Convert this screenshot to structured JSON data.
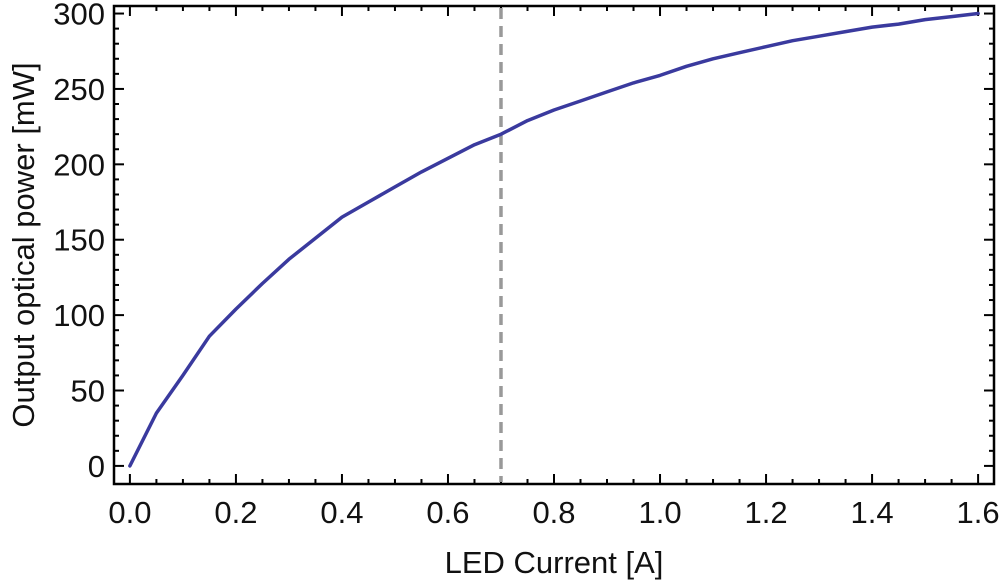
{
  "chart_data": {
    "type": "line",
    "title": "",
    "xlabel": "LED Current [A]",
    "ylabel": "Output optical power [mW]",
    "xlim": [
      -0.03,
      1.63
    ],
    "ylim": [
      -12,
      305
    ],
    "xticks": [
      0.0,
      0.2,
      0.4,
      0.6,
      0.8,
      1.0,
      1.2,
      1.4,
      1.6
    ],
    "xtick_labels": [
      "0.0",
      "0.2",
      "0.4",
      "0.6",
      "0.8",
      "1.0",
      "1.2",
      "1.4",
      "1.6"
    ],
    "yticks": [
      0,
      50,
      100,
      150,
      200,
      250,
      300
    ],
    "ytick_labels": [
      "0",
      "50",
      "100",
      "150",
      "200",
      "250",
      "300"
    ],
    "grid": false,
    "series": [
      {
        "color": "#3a3a9e",
        "x": [
          0.0,
          0.05,
          0.1,
          0.15,
          0.2,
          0.25,
          0.3,
          0.35,
          0.4,
          0.45,
          0.5,
          0.55,
          0.6,
          0.65,
          0.7,
          0.75,
          0.8,
          0.85,
          0.9,
          0.95,
          1.0,
          1.05,
          1.1,
          1.15,
          1.2,
          1.25,
          1.3,
          1.35,
          1.4,
          1.45,
          1.5,
          1.55,
          1.6
        ],
        "y": [
          0,
          35,
          60,
          86,
          104,
          121,
          137,
          151,
          165,
          175,
          185,
          195,
          204,
          213,
          220,
          229,
          236,
          242,
          248,
          254,
          259,
          265,
          270,
          274,
          278,
          282,
          285,
          288,
          291,
          293,
          296,
          298,
          300
        ]
      }
    ],
    "reference_line": {
      "orientation": "vertical",
      "x": 0.7,
      "color": "#999999",
      "style": "dashed"
    }
  }
}
